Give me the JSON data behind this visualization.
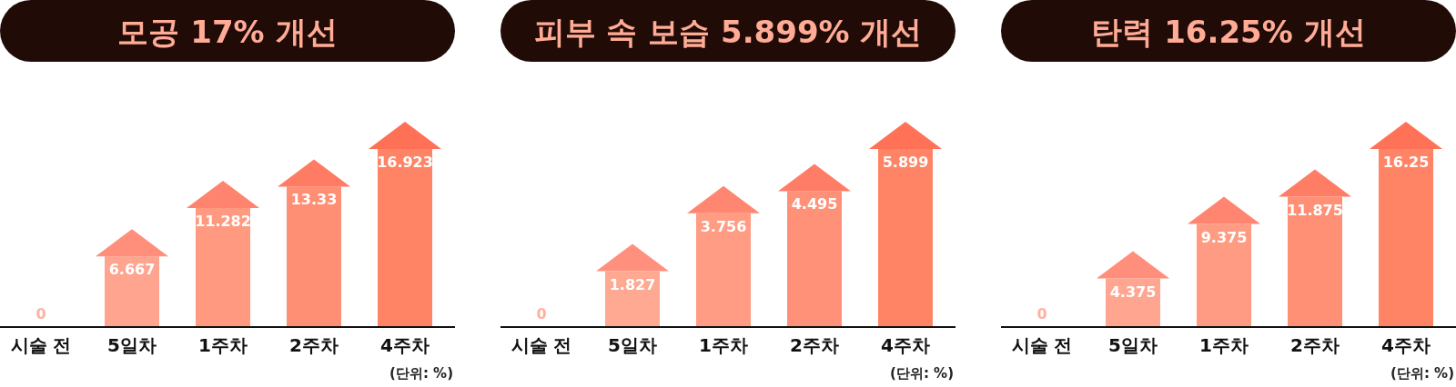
{
  "chart_data": [
    {
      "type": "bar",
      "title": "모공 17% 개선",
      "categories": [
        "시술 전",
        "5일차",
        "1주차",
        "2주차",
        "4주차"
      ],
      "series": [
        {
          "colors": [
            "#ffb19e",
            "#ffa58f",
            "#ff9a81",
            "#ff8f74",
            "#ff8365"
          ],
          "values": [
            0,
            6.667,
            11.282,
            13.33,
            16.923
          ]
        }
      ],
      "data_labels": true,
      "annotations": [
        "(단위: %)"
      ]
    },
    {
      "type": "bar",
      "title": "피부 속 보습 5.899% 개선",
      "categories": [
        "시술 전",
        "5일차",
        "1주차",
        "2주차",
        "4주차"
      ],
      "series": [
        {
          "colors": [
            "#ffb19e",
            "#ffa892",
            "#ff9c83",
            "#ff9178",
            "#ff8466"
          ],
          "values": [
            0,
            1.827,
            3.756,
            4.495,
            5.899
          ]
        }
      ],
      "data_labels": true,
      "annotations": [
        "(단위: %)"
      ]
    },
    {
      "type": "bar",
      "title": "탄력 16.25% 개선",
      "categories": [
        "시술 전",
        "5일차",
        "1주차",
        "2주차",
        "4주차"
      ],
      "series": [
        {
          "colors": [
            "#ffb19e",
            "#ffa590",
            "#ff9b82",
            "#ff9076",
            "#ff8466"
          ],
          "values": [
            0,
            4.375,
            9.375,
            11.875,
            16.25
          ]
        }
      ],
      "data_labels": true,
      "annotations": [
        "(단위: %)"
      ]
    }
  ]
}
